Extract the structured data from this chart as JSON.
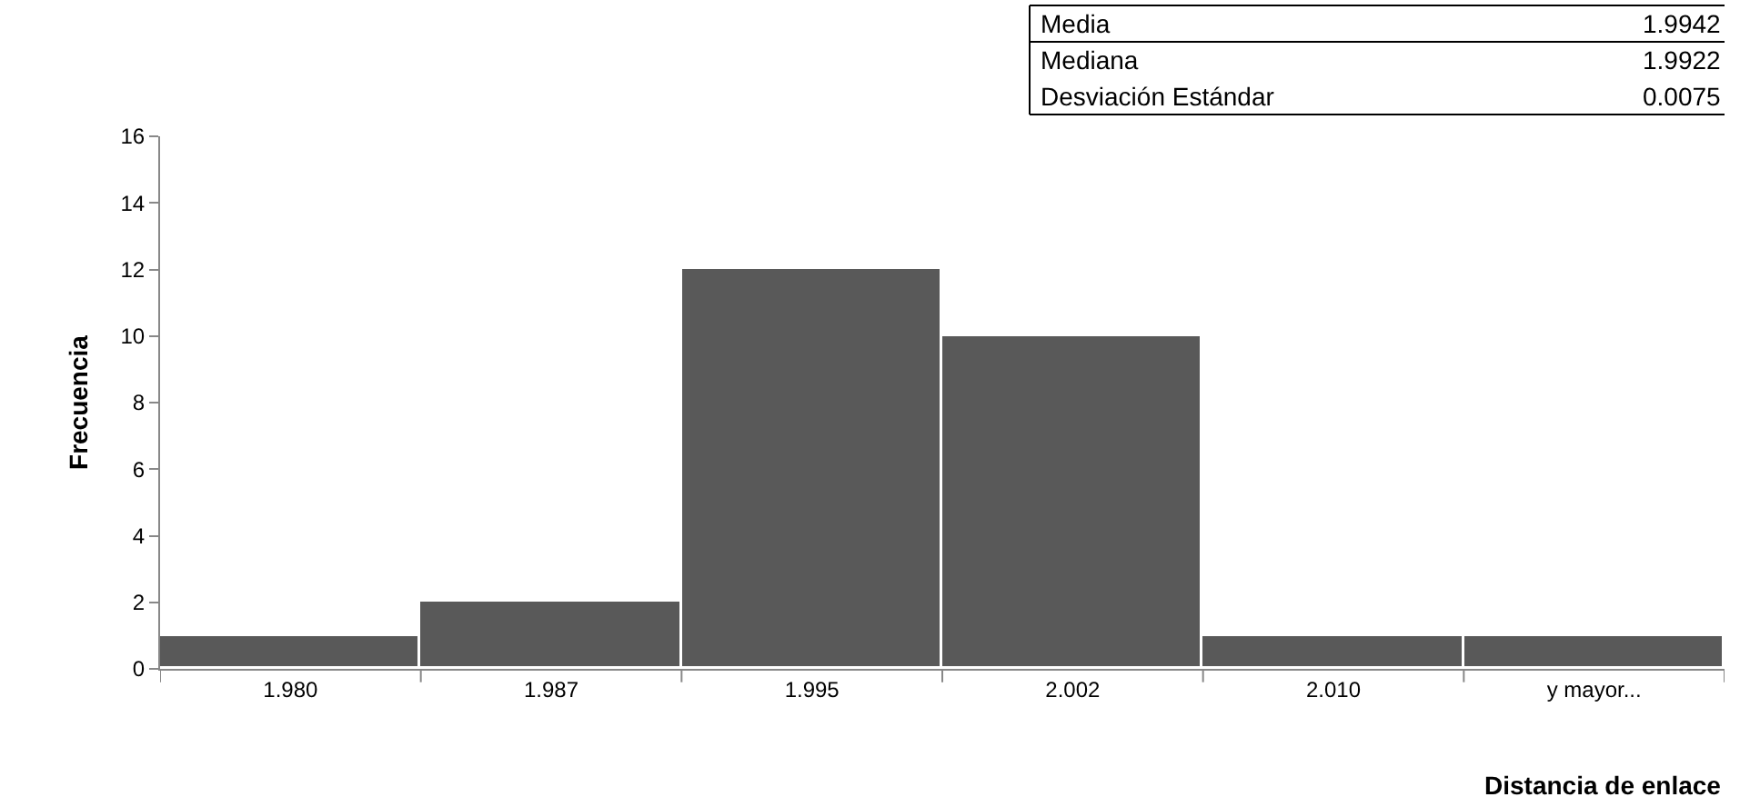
{
  "chart_data": {
    "type": "bar",
    "xlabel": "Distancia de enlace",
    "ylabel": "Frecuencia",
    "categories": [
      "1.980",
      "1.987",
      "1.995",
      "2.002",
      "2.010",
      "y mayor..."
    ],
    "values": [
      1,
      2,
      12,
      10,
      1,
      1
    ],
    "color": "#595959",
    "ylim": [
      0,
      16
    ],
    "yticks": [
      0,
      2,
      4,
      6,
      8,
      10,
      12,
      14,
      16
    ],
    "annotations": [
      "Media",
      "1.9942",
      "Mediana",
      "1.9922",
      "Desviación Estándar",
      "0.0075"
    ]
  }
}
